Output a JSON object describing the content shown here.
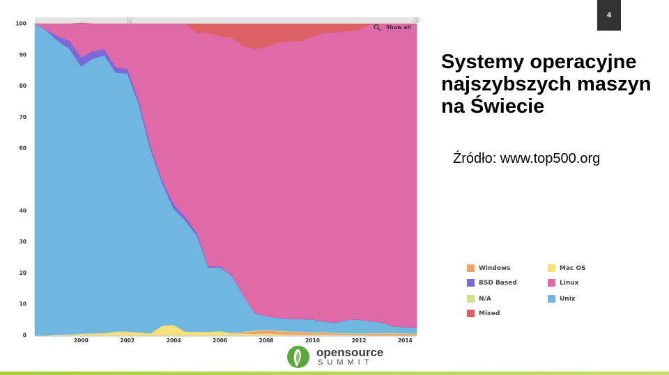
{
  "slide": {
    "page_number": "4",
    "title_lines": [
      "Systemy operacyjne",
      "najszybszych maszyn",
      "na Świecie"
    ],
    "source": "Źródło: www.top500.org"
  },
  "chart_controls": {
    "show_all_label": "Show all",
    "range_start_handle": "<",
    "range_end_handle": ">"
  },
  "logo": {
    "word": "opensource",
    "sub": "SUMMIT",
    "accent": "#5aa83c"
  },
  "chart_data": {
    "type": "area",
    "stacked": true,
    "x": [
      1998.0,
      1998.5,
      1999.0,
      1999.5,
      2000.0,
      2000.5,
      2001.0,
      2001.5,
      2002.0,
      2002.5,
      2003.0,
      2003.5,
      2004.0,
      2004.5,
      2005.0,
      2005.5,
      2006.0,
      2006.5,
      2007.0,
      2007.5,
      2008.0,
      2008.5,
      2009.0,
      2009.5,
      2010.0,
      2010.5,
      2011.0,
      2011.5,
      2012.0,
      2012.5,
      2013.0,
      2013.5,
      2014.0,
      2014.5
    ],
    "xticks": [
      "2000",
      "2002",
      "2004",
      "2006",
      "2008",
      "2010",
      "2012",
      "2014"
    ],
    "xtick_values": [
      2000,
      2002,
      2004,
      2006,
      2008,
      2010,
      2012,
      2014
    ],
    "yticks": [
      "0",
      "10",
      "20",
      "30",
      "40",
      "60",
      "70",
      "80",
      "90",
      "100"
    ],
    "ytick_values": [
      0,
      10,
      20,
      30,
      40,
      60,
      70,
      80,
      90,
      100
    ],
    "ylim": [
      0,
      100
    ],
    "xlim": [
      1998,
      2014.5
    ],
    "grid": false,
    "legend_position": "right",
    "series": [
      {
        "name": "Mac OS",
        "color": "#f6e27a",
        "values": [
          0,
          0,
          0.2,
          0.3,
          0.4,
          0.5,
          0.5,
          1.0,
          1.0,
          0.8,
          0.5,
          3.0,
          3.2,
          1.0,
          1.0,
          1.0,
          1.2,
          0.6,
          0.6,
          0.5,
          0.6,
          0.4,
          0.3,
          0.2,
          0.2,
          0.2,
          0.1,
          0.1,
          0.1,
          0,
          0,
          0,
          0,
          0
        ]
      },
      {
        "name": "Windows",
        "color": "#f3a06b",
        "values": [
          0,
          0,
          0,
          0,
          0,
          0,
          0,
          0,
          0,
          0,
          0,
          0,
          0,
          0,
          0,
          0,
          0,
          0,
          0.4,
          0.8,
          1.0,
          0.9,
          0.8,
          0.8,
          0.6,
          0.6,
          0.5,
          0.4,
          0.4,
          0.5,
          0.6,
          0.6,
          0.5,
          0.4
        ]
      },
      {
        "name": "N/A",
        "color": "#cde08a",
        "values": [
          0,
          0,
          0,
          0,
          0.2,
          0.2,
          0.3,
          0.3,
          0.3,
          0.2,
          0.2,
          0.2,
          0.2,
          0.2,
          0.2,
          0.2,
          0.2,
          0.2,
          0.2,
          0.2,
          0.2,
          0.2,
          0.2,
          0.2,
          0.2,
          0.2,
          0.2,
          0.2,
          0.2,
          0.2,
          0.2,
          0.2,
          0.2,
          0.2
        ]
      },
      {
        "name": "Unix",
        "color": "#6fb7e0",
        "values": [
          100,
          97.8,
          94.2,
          91.6,
          85.7,
          88.1,
          89.0,
          83.0,
          82.7,
          72.8,
          58.8,
          45.6,
          37.2,
          35.6,
          30.8,
          20.5,
          20.4,
          18.4,
          11.8,
          5.5,
          4.4,
          4.1,
          4.0,
          4.0,
          4.0,
          3.4,
          3.2,
          4.2,
          4.3,
          3.8,
          3.3,
          2.0,
          1.9,
          1.9
        ]
      },
      {
        "name": "BSD Based",
        "color": "#7b68d9",
        "values": [
          0,
          0.2,
          1.6,
          2.6,
          2.9,
          2.4,
          2.0,
          1.7,
          1.5,
          1.3,
          1.2,
          1.0,
          1.4,
          1.2,
          1.0,
          0.4,
          0.4,
          0.2,
          0.1,
          0.1,
          0.1,
          0.1,
          0.1,
          0.1,
          0.1,
          0.1,
          0.1,
          0.1,
          0.1,
          0.1,
          0.1,
          0.1,
          0.1,
          0.1
        ]
      },
      {
        "name": "Linux",
        "color": "#e06aa8",
        "values": [
          0,
          2.0,
          4.0,
          5.5,
          11.0,
          8.8,
          8.2,
          14.0,
          14.5,
          24.9,
          39.3,
          50.2,
          58.0,
          62.0,
          64.0,
          74.9,
          73.8,
          76.2,
          79.8,
          84.8,
          86.2,
          88.3,
          88.9,
          89.1,
          90.8,
          92.5,
          93.0,
          92.6,
          93.1,
          95.1,
          95.7,
          97.0,
          97.2,
          97.3
        ]
      },
      {
        "name": "Mixed",
        "color": "#dd6163",
        "values": [
          0,
          0,
          0,
          0,
          0,
          0,
          0,
          0,
          0,
          0,
          0,
          0,
          0,
          0,
          3.0,
          3.0,
          4.0,
          4.4,
          7.1,
          8.1,
          7.5,
          6.0,
          5.7,
          5.6,
          4.1,
          3.0,
          2.9,
          2.4,
          1.8,
          0.3,
          0.1,
          0.1,
          0.1,
          0.1
        ]
      }
    ]
  },
  "legend": [
    {
      "label": "Windows",
      "color": "#f3a06b"
    },
    {
      "label": "Mac OS",
      "color": "#f6e27a"
    },
    {
      "label": "BSD Based",
      "color": "#7b68d9"
    },
    {
      "label": "Linux",
      "color": "#e06aa8"
    },
    {
      "label": "N/A",
      "color": "#cde08a"
    },
    {
      "label": "Unix",
      "color": "#6fb7e0"
    },
    {
      "label": "Mixed",
      "color": "#dd6163"
    }
  ]
}
